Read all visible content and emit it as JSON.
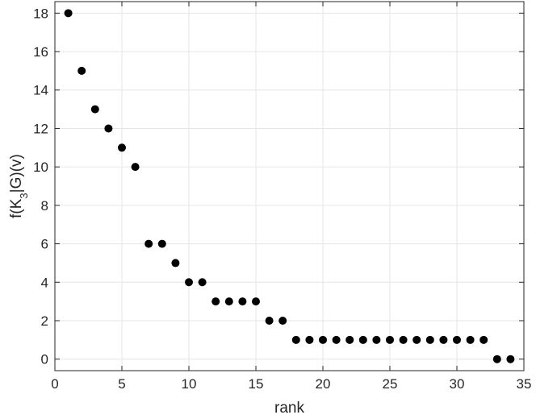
{
  "chart_data": {
    "type": "scatter",
    "xlabel": "rank",
    "ylabel_parts": [
      "f(K",
      "3",
      "|G)(v)"
    ],
    "xlim": [
      0,
      35
    ],
    "ylim": [
      -0.6,
      18.6
    ],
    "xticks": [
      0,
      5,
      10,
      15,
      20,
      25,
      30,
      35
    ],
    "yticks": [
      0,
      2,
      4,
      6,
      8,
      10,
      12,
      14,
      16,
      18
    ],
    "grid": true,
    "marker_color": "#000000",
    "x": [
      1,
      2,
      3,
      4,
      5,
      6,
      7,
      8,
      9,
      10,
      11,
      12,
      13,
      14,
      15,
      16,
      17,
      18,
      19,
      20,
      21,
      22,
      23,
      24,
      25,
      26,
      27,
      28,
      29,
      30,
      31,
      32,
      33,
      34
    ],
    "y": [
      18,
      15,
      13,
      12,
      11,
      10,
      6,
      6,
      5,
      4,
      4,
      3,
      3,
      3,
      3,
      2,
      2,
      1,
      1,
      1,
      1,
      1,
      1,
      1,
      1,
      1,
      1,
      1,
      1,
      1,
      1,
      1,
      0,
      0
    ]
  }
}
